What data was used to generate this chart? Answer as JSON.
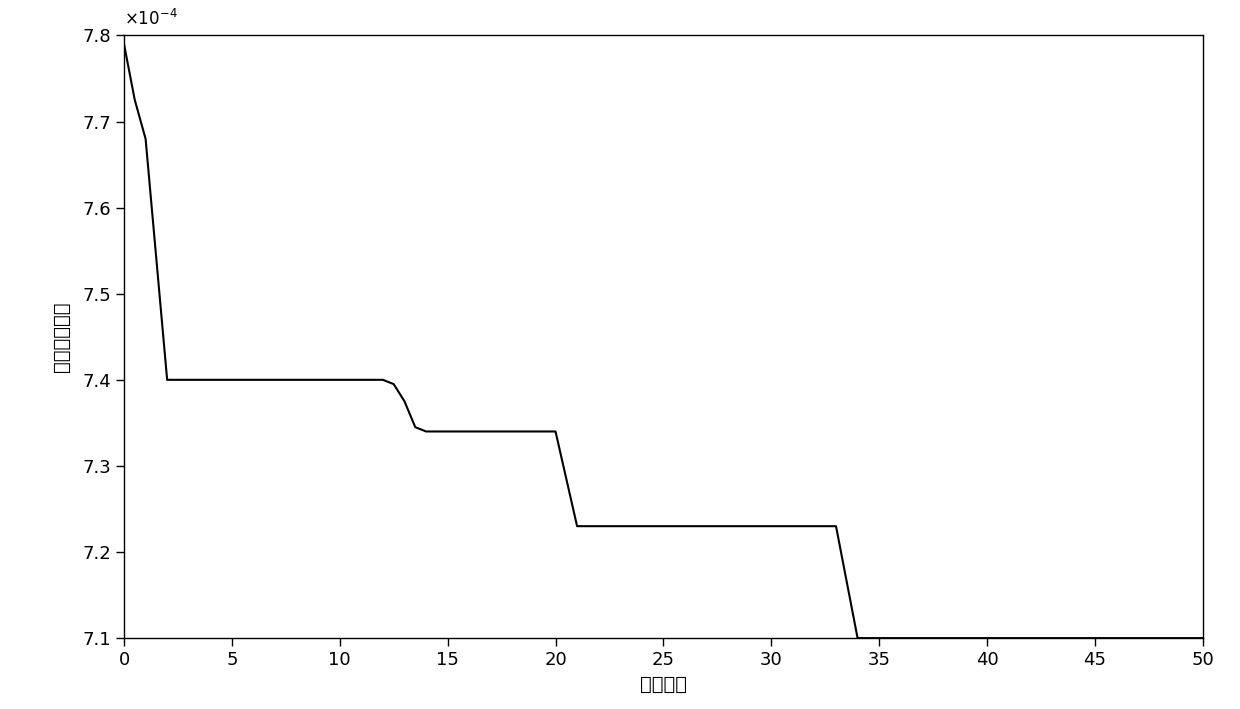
{
  "x": [
    0,
    0.5,
    1,
    2,
    3,
    4,
    5,
    6,
    7,
    8,
    9,
    10,
    11,
    12,
    12.5,
    13,
    13.5,
    14,
    15,
    16,
    17,
    18,
    19,
    20,
    20.5,
    21,
    22,
    23,
    24,
    25,
    26,
    27,
    28,
    29,
    30,
    31,
    32,
    33,
    33.5,
    34,
    35,
    36,
    37,
    38,
    39,
    40,
    41,
    42,
    43,
    44,
    45,
    46,
    47,
    48,
    49,
    50
  ],
  "y": [
    0.000779,
    0.0007725,
    0.000768,
    0.00074,
    0.00074,
    0.00074,
    0.00074,
    0.00074,
    0.00074,
    0.00074,
    0.00074,
    0.00074,
    0.00074,
    0.00074,
    0.0007395,
    0.0007375,
    0.0007345,
    0.000734,
    0.000734,
    0.000734,
    0.000734,
    0.000734,
    0.000734,
    0.000734,
    0.0007285,
    0.000723,
    0.000723,
    0.000723,
    0.000723,
    0.000723,
    0.000723,
    0.000723,
    0.000723,
    0.000723,
    0.000723,
    0.000723,
    0.000723,
    0.000723,
    0.0007165,
    0.00071,
    0.00071,
    0.00071,
    0.00071,
    0.00071,
    0.00071,
    0.00071,
    0.00071,
    0.00071,
    0.00071,
    0.00071,
    0.00071,
    0.00071,
    0.00071,
    0.00071,
    0.00071,
    0.00071
  ],
  "line_color": "#000000",
  "line_width": 1.5,
  "xlabel": "迭代次数",
  "ylabel": "适应度函数値",
  "xlim": [
    0,
    50
  ],
  "ylim": [
    0.00071,
    0.00078
  ],
  "xticks": [
    0,
    5,
    10,
    15,
    20,
    25,
    30,
    35,
    40,
    45,
    50
  ],
  "yticks": [
    0.00071,
    0.00072,
    0.00073,
    0.00074,
    0.00075,
    0.00076,
    0.00077,
    0.00078
  ],
  "background_color": "#ffffff",
  "font_size_label": 14,
  "font_size_tick": 13
}
